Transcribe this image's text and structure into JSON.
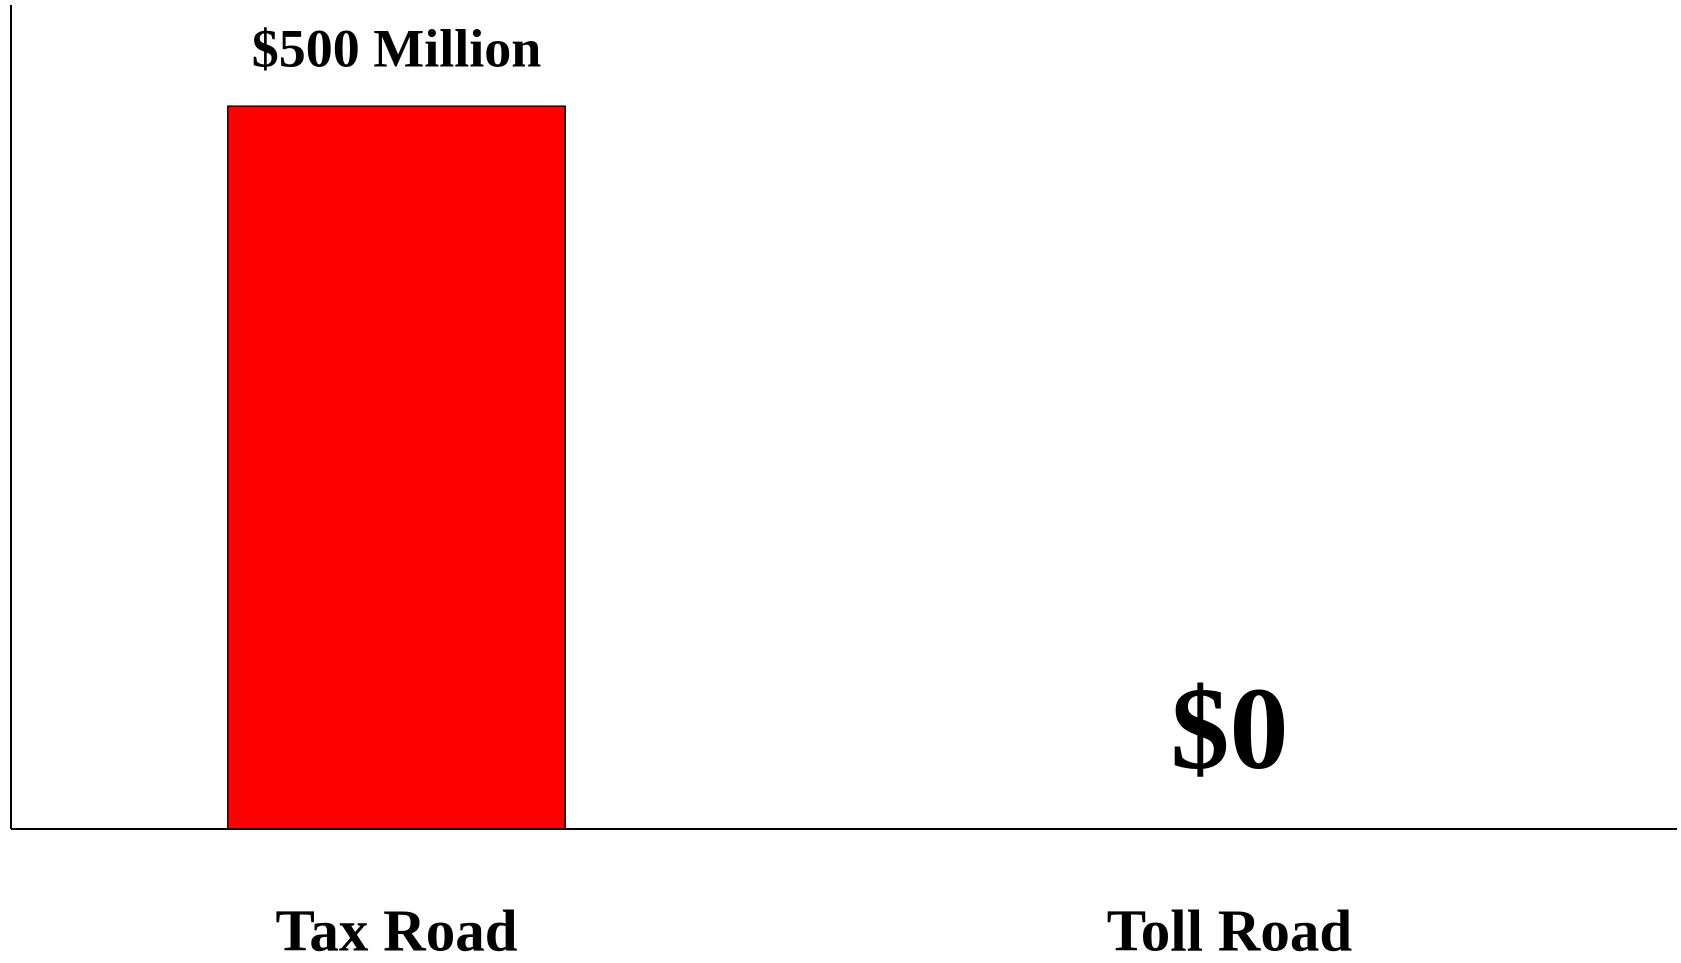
{
  "chart_data": {
    "type": "bar",
    "categories": [
      "Tax Road",
      "Toll Road"
    ],
    "values": [
      500000000,
      0
    ],
    "value_labels": [
      "$500 Million",
      "$0"
    ],
    "color": "#ff0000",
    "ylim": [
      0,
      570000000
    ]
  }
}
